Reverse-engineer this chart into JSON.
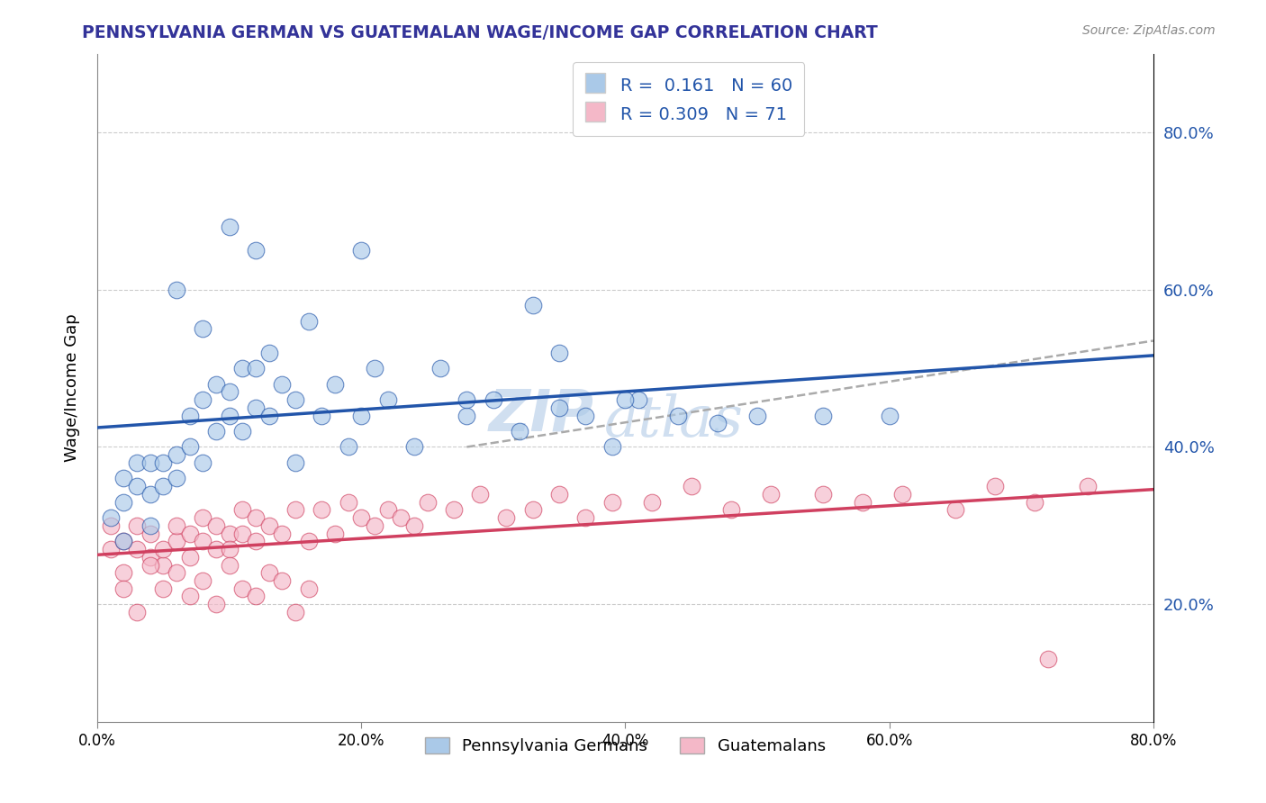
{
  "title": "PENNSYLVANIA GERMAN VS GUATEMALAN WAGE/INCOME GAP CORRELATION CHART",
  "source_text": "Source: ZipAtlas.com",
  "ylabel": "Wage/Income Gap",
  "xlim": [
    0.0,
    0.8
  ],
  "ylim": [
    0.05,
    0.9
  ],
  "xticks": [
    0.0,
    0.2,
    0.4,
    0.6,
    0.8
  ],
  "xtick_labels": [
    "0.0%",
    "20.0%",
    "40.0%",
    "60.0%",
    "80.0%"
  ],
  "ytick_labels": [
    "20.0%",
    "40.0%",
    "60.0%",
    "80.0%"
  ],
  "ytick_positions": [
    0.2,
    0.4,
    0.6,
    0.8
  ],
  "blue_R": 0.161,
  "blue_N": 60,
  "pink_R": 0.309,
  "pink_N": 71,
  "blue_color": "#aac9e8",
  "pink_color": "#f4b8c8",
  "blue_line_color": "#2255aa",
  "pink_line_color": "#d04060",
  "gray_dash_color": "#aaaaaa",
  "watermark_text": "ZIPatlas",
  "watermark_color": "#d0dff0",
  "background_color": "#ffffff",
  "legend_label_blue": "Pennsylvania Germans",
  "legend_label_pink": "Guatemalans",
  "title_color": "#333399",
  "source_color": "#888888",
  "axis_label_color": "#2255aa",
  "blue_scatter_x": [
    0.01,
    0.02,
    0.02,
    0.03,
    0.03,
    0.04,
    0.04,
    0.05,
    0.05,
    0.06,
    0.06,
    0.07,
    0.07,
    0.08,
    0.08,
    0.09,
    0.09,
    0.1,
    0.1,
    0.11,
    0.11,
    0.12,
    0.12,
    0.13,
    0.13,
    0.14,
    0.15,
    0.16,
    0.17,
    0.18,
    0.19,
    0.2,
    0.21,
    0.22,
    0.24,
    0.26,
    0.28,
    0.3,
    0.32,
    0.35,
    0.37,
    0.39,
    0.41,
    0.44,
    0.47,
    0.33,
    0.35,
    0.5,
    0.55,
    0.6,
    0.02,
    0.04,
    0.06,
    0.08,
    0.1,
    0.12,
    0.15,
    0.2,
    0.28,
    0.4
  ],
  "blue_scatter_y": [
    0.31,
    0.33,
    0.36,
    0.35,
    0.38,
    0.34,
    0.38,
    0.35,
    0.38,
    0.36,
    0.39,
    0.4,
    0.44,
    0.38,
    0.46,
    0.42,
    0.48,
    0.44,
    0.47,
    0.5,
    0.42,
    0.45,
    0.5,
    0.52,
    0.44,
    0.48,
    0.38,
    0.56,
    0.44,
    0.48,
    0.4,
    0.44,
    0.5,
    0.46,
    0.4,
    0.5,
    0.44,
    0.46,
    0.42,
    0.52,
    0.44,
    0.4,
    0.46,
    0.44,
    0.43,
    0.58,
    0.45,
    0.44,
    0.44,
    0.44,
    0.28,
    0.3,
    0.6,
    0.55,
    0.68,
    0.65,
    0.46,
    0.65,
    0.46,
    0.46
  ],
  "pink_scatter_x": [
    0.01,
    0.01,
    0.02,
    0.02,
    0.03,
    0.03,
    0.04,
    0.04,
    0.05,
    0.05,
    0.06,
    0.06,
    0.07,
    0.07,
    0.08,
    0.08,
    0.09,
    0.09,
    0.1,
    0.1,
    0.11,
    0.11,
    0.12,
    0.12,
    0.13,
    0.14,
    0.15,
    0.16,
    0.17,
    0.18,
    0.19,
    0.2,
    0.21,
    0.22,
    0.23,
    0.24,
    0.25,
    0.27,
    0.29,
    0.31,
    0.33,
    0.35,
    0.37,
    0.39,
    0.42,
    0.45,
    0.48,
    0.51,
    0.55,
    0.58,
    0.61,
    0.65,
    0.68,
    0.71,
    0.75,
    0.02,
    0.03,
    0.04,
    0.05,
    0.06,
    0.07,
    0.08,
    0.09,
    0.1,
    0.11,
    0.12,
    0.13,
    0.14,
    0.15,
    0.16,
    0.72
  ],
  "pink_scatter_y": [
    0.27,
    0.3,
    0.24,
    0.28,
    0.27,
    0.3,
    0.26,
    0.29,
    0.25,
    0.27,
    0.28,
    0.3,
    0.26,
    0.29,
    0.28,
    0.31,
    0.27,
    0.3,
    0.29,
    0.27,
    0.29,
    0.32,
    0.28,
    0.31,
    0.3,
    0.29,
    0.32,
    0.28,
    0.32,
    0.29,
    0.33,
    0.31,
    0.3,
    0.32,
    0.31,
    0.3,
    0.33,
    0.32,
    0.34,
    0.31,
    0.32,
    0.34,
    0.31,
    0.33,
    0.33,
    0.35,
    0.32,
    0.34,
    0.34,
    0.33,
    0.34,
    0.32,
    0.35,
    0.33,
    0.35,
    0.22,
    0.19,
    0.25,
    0.22,
    0.24,
    0.21,
    0.23,
    0.2,
    0.25,
    0.22,
    0.21,
    0.24,
    0.23,
    0.19,
    0.22,
    0.13
  ],
  "gray_line_x": [
    0.28,
    0.8
  ],
  "gray_line_y": [
    0.4,
    0.535
  ]
}
